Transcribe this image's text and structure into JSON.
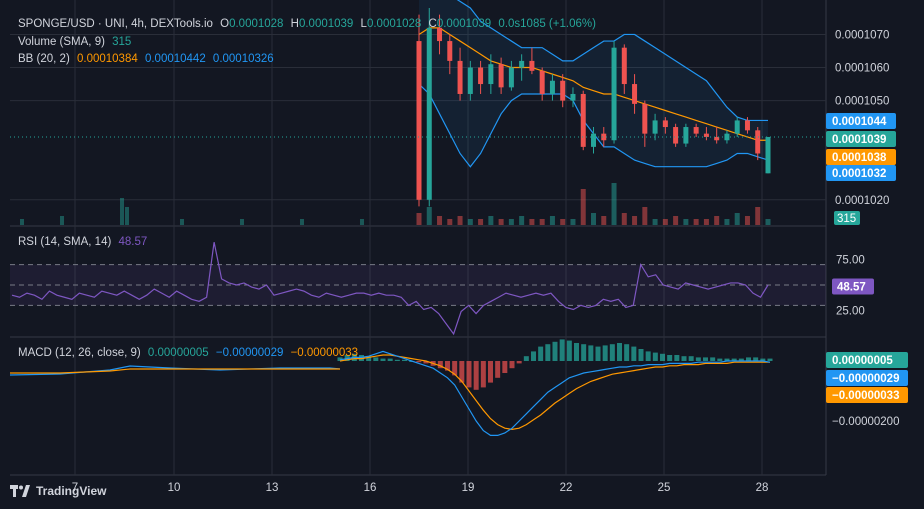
{
  "header": {
    "symbol": "SPONGE/USD · UNI, 4h, DEXTools.io",
    "o_label": "O",
    "o_value": "0.0001028",
    "h_label": "H",
    "h_value": "0.0001039",
    "l_label": "L",
    "l_value": "0.0001028",
    "c_label": "C",
    "c_value": "0.0001039",
    "change": "0.0s1085 (+1.06%)"
  },
  "volume_legend": {
    "label": "Volume (SMA, 9)",
    "value": "315"
  },
  "bb_legend": {
    "label": "BB (20, 2)",
    "basis": "0.00010384",
    "upper": "0.00010442",
    "lower": "0.00010326"
  },
  "rsi_legend": {
    "label": "RSI (14, SMA, 14)",
    "value": "48.57"
  },
  "macd_legend": {
    "label": "MACD (12, 26, close, 9)",
    "hist": "0.00000005",
    "macd": "−0.00000029",
    "signal": "−0.00000033"
  },
  "colors": {
    "background": "#131722",
    "grid": "#2a2e39",
    "text": "#d1d4dc",
    "up": "#26a69a",
    "down": "#ef5350",
    "bb_band": "#2196f3",
    "bb_basis": "#ff9800",
    "rsi_line": "#7e57c2",
    "macd_line": "#2196f3",
    "signal_line": "#ff9800"
  },
  "price_axis": {
    "ticks": [
      "0.0001070",
      "0.0001060",
      "0.0001050",
      "0.0001020"
    ]
  },
  "rsi_axis": {
    "ticks": [
      "75.00",
      "25.00"
    ]
  },
  "macd_axis": {
    "ticks": [
      "−0.00000200"
    ]
  },
  "price_tags": [
    {
      "text": "0.0001044",
      "color": "#2196f3"
    },
    {
      "text": "0.0001039",
      "color": "#26a69a"
    },
    {
      "text": "0.0001038",
      "color": "#ff9800"
    },
    {
      "text": "0.0001032",
      "color": "#2196f3"
    }
  ],
  "volume_tag": {
    "text": "315",
    "color": "#26a69a"
  },
  "rsi_tag": {
    "text": "48.57",
    "color": "#7e57c2"
  },
  "macd_tags": [
    {
      "text": "0.00000005",
      "color": "#26a69a"
    },
    {
      "text": "−0.00000029",
      "color": "#2196f3"
    },
    {
      "text": "−0.00000033",
      "color": "#ff9800"
    }
  ],
  "x_axis": {
    "labels": [
      "7",
      "10",
      "13",
      "16",
      "19",
      "22",
      "25",
      "28"
    ]
  },
  "branding": {
    "name": "TradingView"
  },
  "chart_data": [
    {
      "type": "candlestick",
      "title": "SPONGE/USD · UNI, 4h, DEXTools.io",
      "x_ticks": [
        "7",
        "10",
        "13",
        "16",
        "19",
        "22",
        "25",
        "28"
      ],
      "ylim": [
        0.0001016,
        0.0001078
      ],
      "candles": [
        {
          "o": 0.0001068,
          "h": 0.0001076,
          "l": 0.0001018,
          "c": 0.000102
        },
        {
          "o": 0.000102,
          "h": 0.0001078,
          "l": 0.0001018,
          "c": 0.0001072
        },
        {
          "o": 0.0001072,
          "h": 0.0001076,
          "l": 0.0001064,
          "c": 0.0001068
        },
        {
          "o": 0.0001068,
          "h": 0.000107,
          "l": 0.0001058,
          "c": 0.0001062
        },
        {
          "o": 0.0001062,
          "h": 0.0001066,
          "l": 0.000105,
          "c": 0.0001052
        },
        {
          "o": 0.0001052,
          "h": 0.0001062,
          "l": 0.000105,
          "c": 0.000106
        },
        {
          "o": 0.000106,
          "h": 0.0001062,
          "l": 0.0001052,
          "c": 0.0001055
        },
        {
          "o": 0.0001055,
          "h": 0.0001064,
          "l": 0.0001052,
          "c": 0.0001061
        },
        {
          "o": 0.0001061,
          "h": 0.0001063,
          "l": 0.0001052,
          "c": 0.0001054
        },
        {
          "o": 0.0001054,
          "h": 0.0001062,
          "l": 0.0001053,
          "c": 0.000106
        },
        {
          "o": 0.000106,
          "h": 0.0001064,
          "l": 0.0001056,
          "c": 0.0001062
        },
        {
          "o": 0.0001062,
          "h": 0.0001066,
          "l": 0.0001058,
          "c": 0.0001059
        },
        {
          "o": 0.0001059,
          "h": 0.000106,
          "l": 0.000105,
          "c": 0.0001052
        },
        {
          "o": 0.0001052,
          "h": 0.0001058,
          "l": 0.000105,
          "c": 0.0001056
        },
        {
          "o": 0.0001056,
          "h": 0.0001058,
          "l": 0.0001048,
          "c": 0.000105
        },
        {
          "o": 0.000105,
          "h": 0.0001054,
          "l": 0.0001048,
          "c": 0.0001052
        },
        {
          "o": 0.0001052,
          "h": 0.0001053,
          "l": 0.0001035,
          "c": 0.0001036
        },
        {
          "o": 0.0001036,
          "h": 0.0001042,
          "l": 0.0001034,
          "c": 0.000104
        },
        {
          "o": 0.000104,
          "h": 0.0001042,
          "l": 0.0001036,
          "c": 0.0001038
        },
        {
          "o": 0.0001038,
          "h": 0.0001068,
          "l": 0.0001037,
          "c": 0.0001066
        },
        {
          "o": 0.0001066,
          "h": 0.0001067,
          "l": 0.0001052,
          "c": 0.0001055
        },
        {
          "o": 0.0001055,
          "h": 0.0001058,
          "l": 0.0001046,
          "c": 0.0001049
        },
        {
          "o": 0.0001049,
          "h": 0.000105,
          "l": 0.0001036,
          "c": 0.000104
        },
        {
          "o": 0.000104,
          "h": 0.0001046,
          "l": 0.0001038,
          "c": 0.0001044
        },
        {
          "o": 0.0001044,
          "h": 0.0001045,
          "l": 0.000104,
          "c": 0.0001042
        },
        {
          "o": 0.0001042,
          "h": 0.0001043,
          "l": 0.0001036,
          "c": 0.0001037
        },
        {
          "o": 0.0001037,
          "h": 0.0001043,
          "l": 0.0001036,
          "c": 0.0001042
        },
        {
          "o": 0.0001042,
          "h": 0.0001043,
          "l": 0.0001039,
          "c": 0.000104
        },
        {
          "o": 0.000104,
          "h": 0.0001042,
          "l": 0.0001038,
          "c": 0.0001039
        },
        {
          "o": 0.0001039,
          "h": 0.0001042,
          "l": 0.0001037,
          "c": 0.0001038
        },
        {
          "o": 0.0001038,
          "h": 0.0001041,
          "l": 0.0001037,
          "c": 0.000104
        },
        {
          "o": 0.000104,
          "h": 0.0001045,
          "l": 0.0001039,
          "c": 0.0001044
        },
        {
          "o": 0.0001044,
          "h": 0.0001045,
          "l": 0.000104,
          "c": 0.0001041
        },
        {
          "o": 0.0001041,
          "h": 0.0001042,
          "l": 0.0001032,
          "c": 0.0001034
        },
        {
          "o": 0.0001028,
          "h": 0.0001039,
          "l": 0.0001028,
          "c": 0.0001039
        }
      ],
      "bb_upper": [
        0.0001085,
        0.0001088,
        0.0001086,
        0.0001082,
        0.000108,
        0.0001078,
        0.0001074,
        0.0001072,
        0.000107,
        0.0001068,
        0.0001066,
        0.0001066,
        0.0001066,
        0.0001064,
        0.0001062,
        0.0001062,
        0.0001064,
        0.0001066,
        0.0001068,
        0.0001068,
        0.000107,
        0.000107,
        0.0001068,
        0.0001066,
        0.0001064,
        0.0001062,
        0.000106,
        0.0001058,
        0.0001056,
        0.0001052,
        0.0001048,
        0.0001045,
        0.0001044,
        0.0001044,
        0.0001044
      ],
      "bb_basis": [
        0.000107,
        0.0001072,
        0.0001072,
        0.000107,
        0.0001068,
        0.0001066,
        0.0001064,
        0.0001062,
        0.0001061,
        0.000106,
        0.000106,
        0.000106,
        0.0001059,
        0.0001058,
        0.0001057,
        0.0001056,
        0.0001054,
        0.0001053,
        0.0001052,
        0.0001052,
        0.0001051,
        0.000105,
        0.0001049,
        0.0001048,
        0.0001047,
        0.0001046,
        0.0001045,
        0.0001044,
        0.0001043,
        0.0001042,
        0.0001041,
        0.000104,
        0.0001039,
        0.0001038,
        0.0001038
      ],
      "bb_lower": [
        0.0001055,
        0.0001052,
        0.0001046,
        0.000104,
        0.0001034,
        0.000103,
        0.0001034,
        0.000104,
        0.0001046,
        0.000105,
        0.0001052,
        0.0001052,
        0.0001052,
        0.0001052,
        0.0001052,
        0.000105,
        0.0001044,
        0.000104,
        0.0001036,
        0.0001036,
        0.0001034,
        0.0001032,
        0.0001031,
        0.000103,
        0.000103,
        0.000103,
        0.000103,
        0.000103,
        0.000103,
        0.0001031,
        0.0001032,
        0.0001034,
        0.0001034,
        0.0001033,
        0.0001032
      ],
      "volume": [
        4,
        6,
        3,
        2,
        3,
        2,
        2,
        3,
        2,
        2,
        3,
        2,
        2,
        3,
        2,
        2,
        12,
        4,
        3,
        14,
        4,
        3,
        6,
        2,
        2,
        3,
        2,
        2,
        2,
        3,
        2,
        4,
        3,
        6,
        2
      ],
      "legend_values": {
        "volume_sma": 315,
        "bb_basis": 0.00010384,
        "bb_upper": 0.00010442,
        "bb_lower": 0.00010326
      }
    },
    {
      "type": "line",
      "title": "RSI (14, SMA, 14)",
      "ylim": [
        0,
        100
      ],
      "levels": [
        70,
        50,
        30
      ],
      "y_ticks": [
        75,
        25
      ],
      "rsi": [
        40,
        38,
        42,
        40,
        36,
        44,
        40,
        38,
        36,
        42,
        40,
        38,
        44,
        42,
        40,
        44,
        40,
        36,
        40,
        46,
        42,
        38,
        44,
        40,
        36,
        34,
        38,
        92,
        56,
        52,
        50,
        52,
        48,
        46,
        50,
        40,
        42,
        44,
        46,
        44,
        40,
        38,
        42,
        40,
        38,
        40,
        42,
        42,
        40,
        42,
        40,
        40,
        38,
        30,
        34,
        26,
        28,
        22,
        12,
        2,
        24,
        30,
        22,
        30,
        34,
        38,
        42,
        40,
        38,
        40,
        42,
        40,
        42,
        34,
        28,
        26,
        30,
        28,
        30,
        36,
        34,
        36,
        28,
        30,
        70,
        58,
        60,
        50,
        48,
        46,
        52,
        50,
        48,
        46,
        48,
        50,
        52,
        52,
        50,
        42,
        38,
        50
      ],
      "rsi_sma": [
        40,
        40,
        40,
        40,
        40,
        40,
        40,
        40,
        40,
        40,
        40,
        40,
        41,
        41,
        41,
        41,
        41,
        41,
        41,
        41,
        41,
        41,
        41,
        41,
        41,
        41,
        41,
        42,
        43,
        44,
        45,
        45,
        45,
        45,
        45,
        45,
        45,
        44,
        44,
        43,
        43,
        42,
        42,
        42,
        42,
        42,
        41,
        41,
        41,
        41,
        41,
        41,
        40,
        39,
        38,
        37,
        35,
        33,
        31,
        29,
        28,
        27,
        27,
        27,
        27,
        28,
        29,
        30,
        31,
        32,
        33,
        34,
        35,
        35,
        34,
        33,
        33,
        32,
        32,
        32,
        32,
        32,
        32,
        32,
        34,
        36,
        38,
        40,
        41,
        42,
        43,
        44,
        45,
        46,
        47,
        48,
        48,
        48,
        48,
        48,
        47,
        48.57
      ],
      "last": 48.57
    },
    {
      "type": "bar",
      "title": "MACD (12, 26, close, 9)",
      "histogram": [
        0.03,
        0.05,
        0.06,
        0.05,
        0.04,
        0.03,
        0.02,
        0.02,
        0.01,
        0.01,
        0.0,
        -0.01,
        -0.02,
        -0.04,
        -0.06,
        -0.08,
        -0.12,
        -0.18,
        -0.22,
        -0.24,
        -0.22,
        -0.18,
        -0.14,
        -0.1,
        -0.06,
        -0.02,
        0.04,
        0.08,
        0.12,
        0.14,
        0.16,
        0.18,
        0.17,
        0.15,
        0.14,
        0.13,
        0.12,
        0.13,
        0.14,
        0.15,
        0.14,
        0.12,
        0.1,
        0.08,
        0.07,
        0.06,
        0.05,
        0.05,
        0.04,
        0.04,
        0.03,
        0.03,
        0.03,
        0.02,
        0.02,
        0.02,
        0.02,
        0.03,
        0.03,
        0.02,
        0.02
      ],
      "macd": [
        0.01,
        0.02,
        0.03,
        0.03,
        0.04,
        0.06,
        0.08,
        0.06,
        0.04,
        0.02,
        0.0,
        -0.02,
        -0.04,
        -0.06,
        -0.1,
        -0.14,
        -0.2,
        -0.3,
        -0.4,
        -0.5,
        -0.58,
        -0.62,
        -0.62,
        -0.6,
        -0.56,
        -0.5,
        -0.44,
        -0.38,
        -0.32,
        -0.26,
        -0.22,
        -0.18,
        -0.14,
        -0.12,
        -0.1,
        -0.09,
        -0.08,
        -0.07,
        -0.06,
        -0.05,
        -0.05,
        -0.04,
        -0.04,
        -0.03,
        -0.03,
        -0.03,
        -0.02,
        -0.02,
        -0.02,
        -0.02,
        -0.01,
        -0.01,
        -0.01,
        -0.01,
        0.0,
        0.0,
        0.0,
        0.0,
        0.0,
        0.0,
        -0.01
      ],
      "signal": [
        0.0,
        0.01,
        0.02,
        0.02,
        0.03,
        0.04,
        0.05,
        0.05,
        0.04,
        0.03,
        0.02,
        0.01,
        0.0,
        -0.02,
        -0.04,
        -0.07,
        -0.11,
        -0.17,
        -0.25,
        -0.33,
        -0.41,
        -0.48,
        -0.53,
        -0.56,
        -0.57,
        -0.56,
        -0.53,
        -0.49,
        -0.45,
        -0.4,
        -0.35,
        -0.31,
        -0.27,
        -0.23,
        -0.2,
        -0.17,
        -0.15,
        -0.13,
        -0.11,
        -0.1,
        -0.09,
        -0.08,
        -0.07,
        -0.06,
        -0.05,
        -0.05,
        -0.04,
        -0.04,
        -0.03,
        -0.03,
        -0.03,
        -0.02,
        -0.02,
        -0.02,
        -0.02,
        -0.01,
        -0.01,
        -0.01,
        -0.01,
        -0.01,
        -0.01
      ],
      "legend_values": {
        "hist": 5e-08,
        "macd": -2.9e-07,
        "signal": -3.3e-07
      }
    }
  ]
}
